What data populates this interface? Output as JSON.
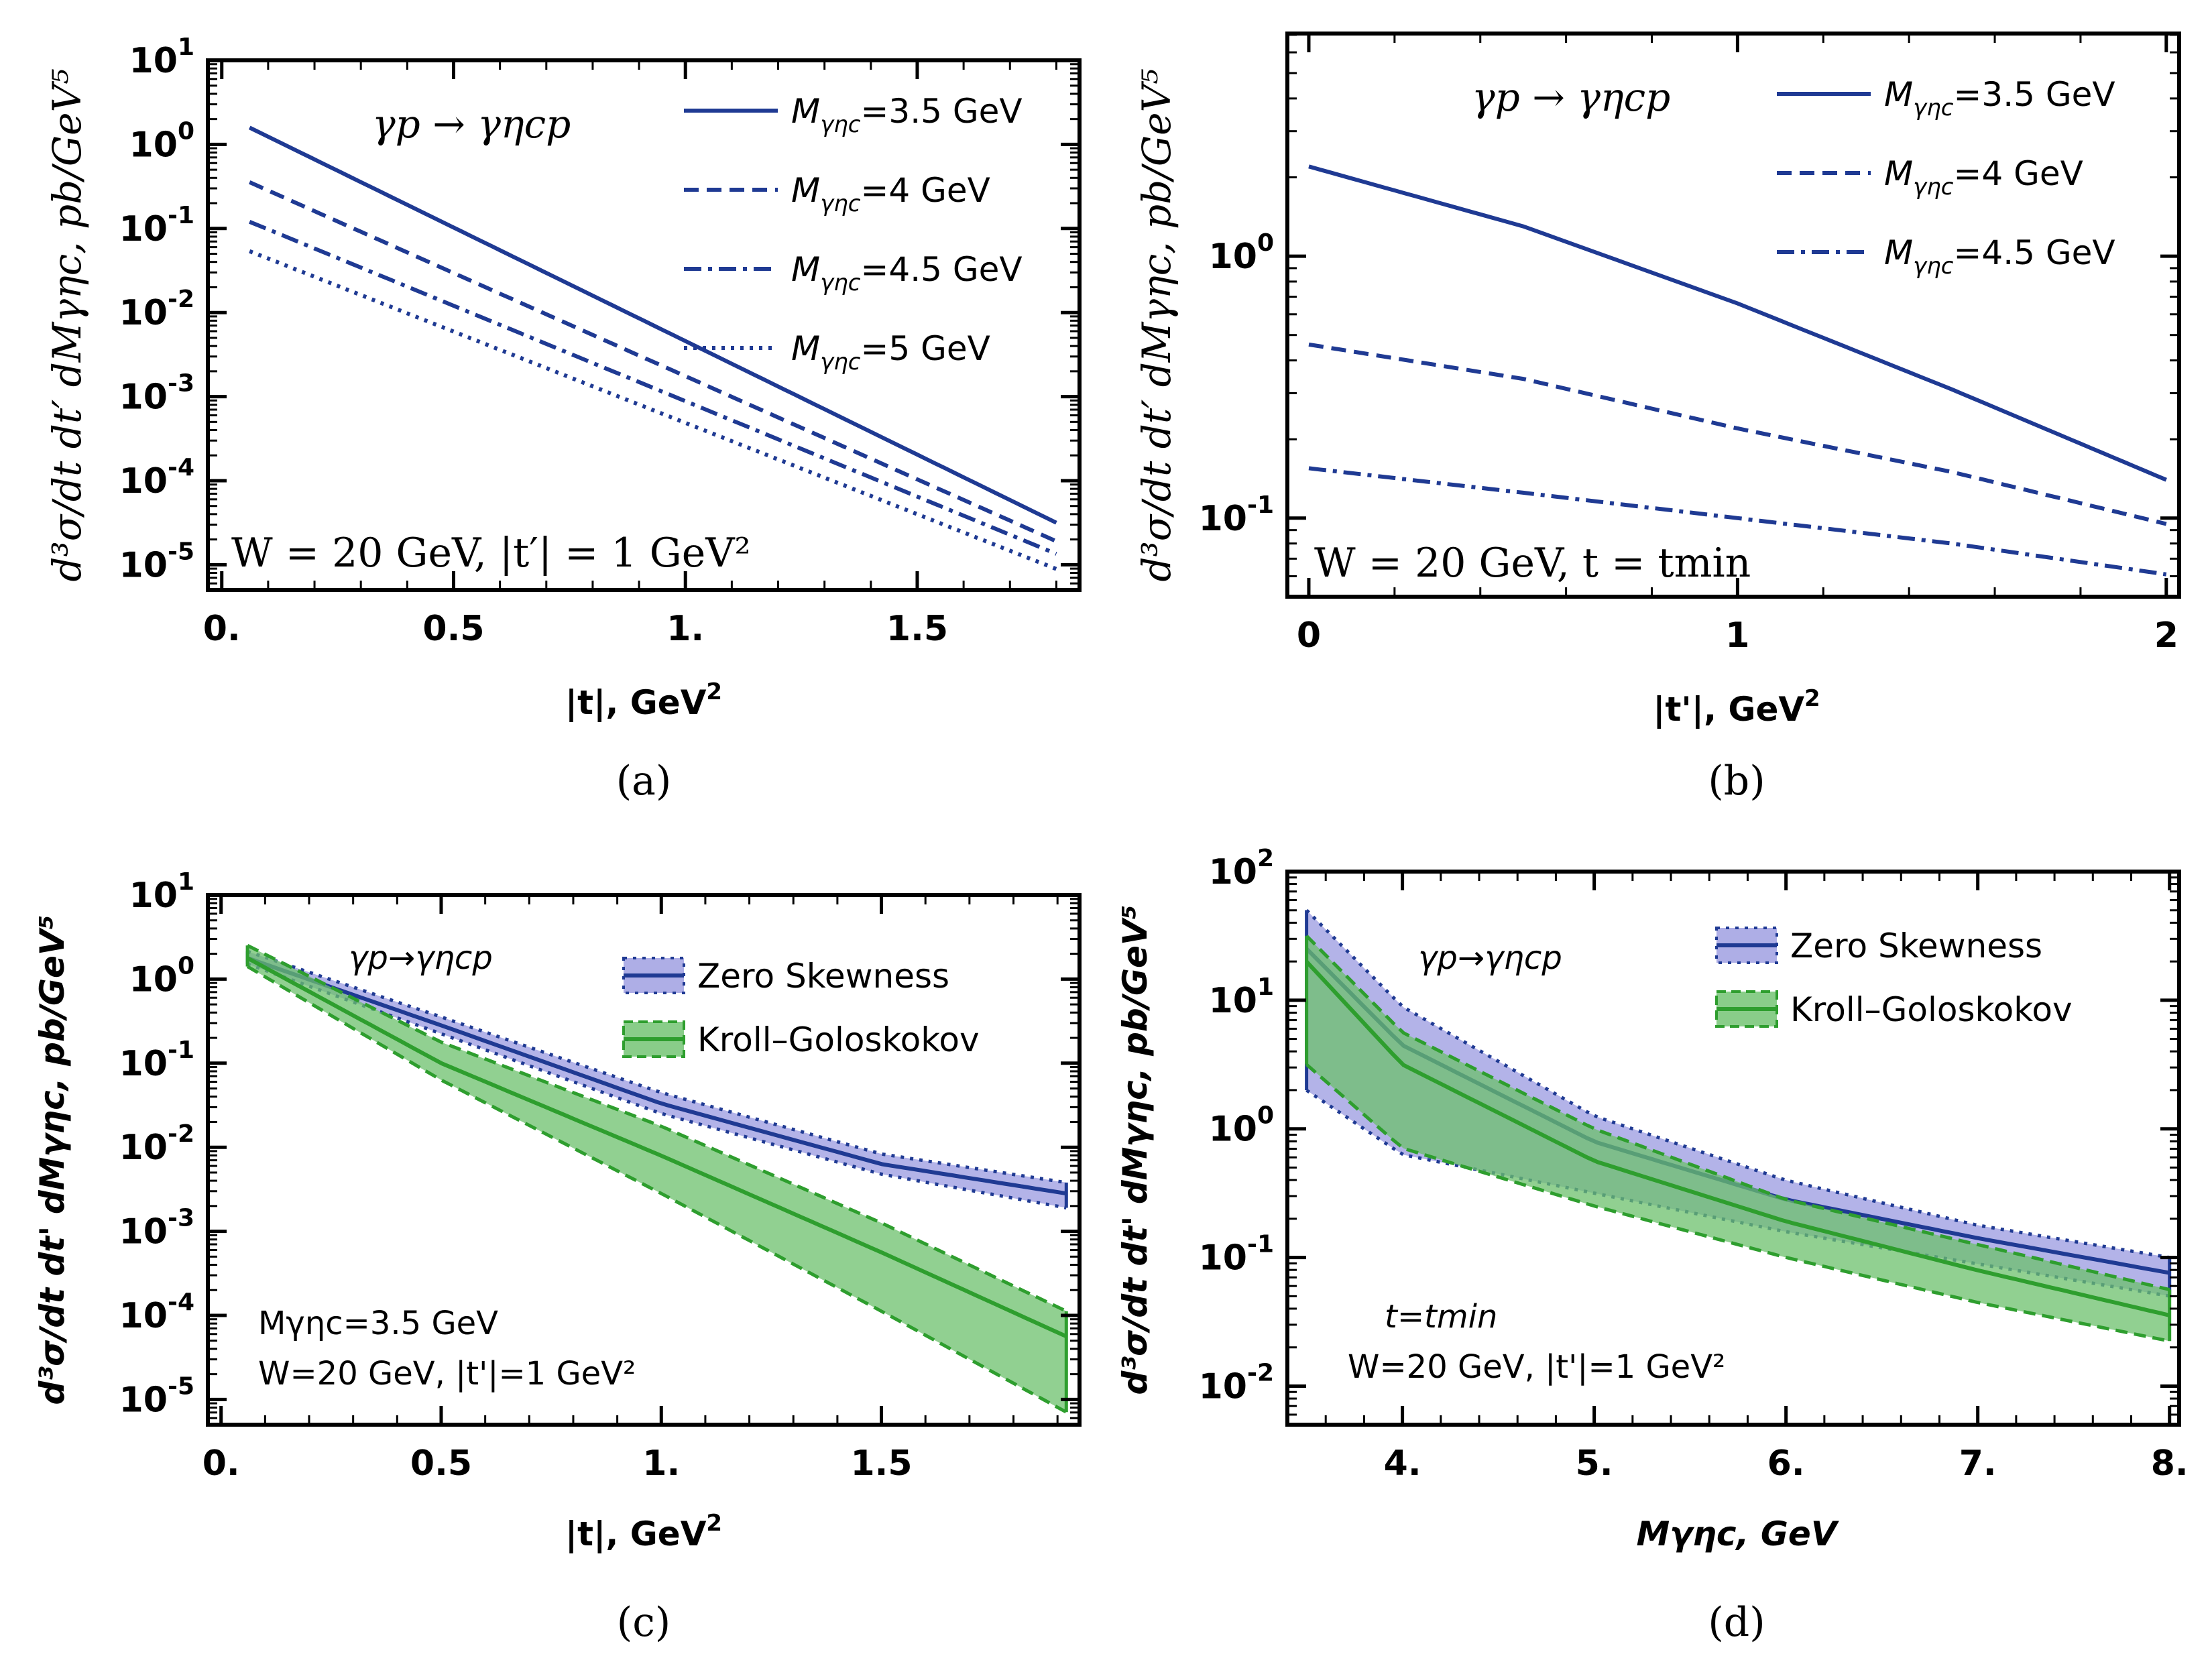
{
  "figure": {
    "colors": {
      "blue": "#1f3a93",
      "green": "#2e9e2e",
      "blue_fill": "#9a9ae0",
      "green_fill": "#6cc06c"
    }
  },
  "chart_data": [
    {
      "id": "a",
      "type": "line",
      "caption": "(a)",
      "log_y": true,
      "xlim": [
        -0.03,
        1.85
      ],
      "ylim_exp": [
        -5.3,
        1
      ],
      "xticks": [
        0,
        0.5,
        1,
        1.5
      ],
      "xtick_labels": [
        "0.",
        "0.5",
        "1.",
        "1.5"
      ],
      "yticks_exp": [
        -5,
        -4,
        -3,
        -2,
        -1,
        0,
        1
      ],
      "ytick_labels": [
        "10",
        "10",
        "10",
        "10",
        "10",
        "10",
        "10"
      ],
      "ytick_sups": [
        "-5",
        "-4",
        "-3",
        "-2",
        "-1",
        "0",
        "1"
      ],
      "xlabel": "|t|, GeV",
      "xlabel_sup": "2",
      "ylabel": "d³σ/dt dt′ dMγηc,  pb/GeV⁵",
      "process": "γp → γηcp",
      "annotation": "W = 20 GeV,  |t′| = 1 GeV²",
      "series": [
        {
          "name": "Mγηc=3.5 GeV",
          "legend_prefix": "M",
          "legend_sub": "γηc",
          "legend_suffix": "=3.5 GeV",
          "dash": "solid",
          "x": [
            0.06,
            1.8
          ],
          "y_exp": [
            0.2,
            -4.5
          ]
        },
        {
          "name": "Mγηc=4 GeV",
          "legend_prefix": "M",
          "legend_sub": "γηc",
          "legend_suffix": "=4 GeV",
          "dash": "dashed",
          "x": [
            0.06,
            1.8
          ],
          "y_exp": [
            -0.45,
            -4.72
          ]
        },
        {
          "name": "Mγηc=4.5 GeV",
          "legend_prefix": "M",
          "legend_sub": "γηc",
          "legend_suffix": "=4.5 GeV",
          "dash": "dashdot",
          "x": [
            0.06,
            1.8
          ],
          "y_exp": [
            -0.92,
            -4.87
          ]
        },
        {
          "name": "Mγηc=5 GeV",
          "legend_prefix": "M",
          "legend_sub": "γηc",
          "legend_suffix": "=5 GeV",
          "dash": "dotted",
          "x": [
            0.06,
            1.8
          ],
          "y_exp": [
            -1.27,
            -5.05
          ]
        }
      ]
    },
    {
      "id": "b",
      "type": "line",
      "caption": "(b)",
      "log_y": true,
      "xlim": [
        -0.05,
        2.03
      ],
      "ylim_exp": [
        -1.3,
        0.85
      ],
      "xticks": [
        0,
        1,
        2
      ],
      "xtick_labels": [
        "0",
        "1",
        "2"
      ],
      "yticks_exp": [
        -1,
        0
      ],
      "ytick_labels": [
        "10",
        "10"
      ],
      "ytick_sups": [
        "-1",
        "0"
      ],
      "xlabel": "|t'|, GeV",
      "xlabel_sup": "2",
      "ylabel": "d³σ/dt dt′ dMγηc,  pb/GeV⁵",
      "process": "γp → γηcp",
      "annotation": "W = 20 GeV,  t = tmin",
      "series": [
        {
          "name": "Mγηc=3.5 GeV",
          "legend_prefix": "M",
          "legend_sub": "γηc",
          "legend_suffix": "=3.5 GeV",
          "dash": "solid",
          "x": [
            0,
            0.5,
            1,
            1.5,
            2
          ],
          "y": [
            2.2,
            1.3,
            0.66,
            0.31,
            0.14
          ]
        },
        {
          "name": "Mγηc=4 GeV",
          "legend_prefix": "M",
          "legend_sub": "γηc",
          "legend_suffix": "=4 GeV",
          "dash": "dashed",
          "x": [
            0,
            0.5,
            1,
            1.5,
            2
          ],
          "y": [
            0.46,
            0.34,
            0.22,
            0.15,
            0.095
          ]
        },
        {
          "name": "Mγηc=4.5 GeV",
          "legend_prefix": "M",
          "legend_sub": "γηc",
          "legend_suffix": "=4.5 GeV",
          "dash": "dashdot",
          "x": [
            0,
            0.5,
            1,
            1.5,
            2
          ],
          "y": [
            0.155,
            0.125,
            0.1,
            0.08,
            0.061
          ]
        }
      ]
    },
    {
      "id": "c",
      "type": "area",
      "caption": "(c)",
      "log_y": true,
      "xlim": [
        -0.03,
        1.95
      ],
      "ylim_exp": [
        -5.3,
        1
      ],
      "xticks": [
        0,
        0.5,
        1,
        1.5
      ],
      "xtick_labels": [
        "0.",
        "0.5",
        "1.",
        "1.5"
      ],
      "yticks_exp": [
        -5,
        -4,
        -3,
        -2,
        -1,
        0,
        1
      ],
      "ytick_labels": [
        "10",
        "10",
        "10",
        "10",
        "10",
        "10",
        "10"
      ],
      "ytick_sups": [
        "-5",
        "-4",
        "-3",
        "-2",
        "-1",
        "0",
        "1"
      ],
      "xlabel": "|t|, GeV",
      "xlabel_sup": "2",
      "ylabel": "d³σ/dt dt' dMγηc, pb/GeV⁵",
      "process": "γp→γηcp",
      "annotation_1": "Mγηc=3.5 GeV",
      "annotation_2": "W=20 GeV, |t'|=1 GeV²",
      "series": [
        {
          "name": "Zero Skewness",
          "x": [
            0.06,
            0.5,
            1.0,
            1.5,
            1.92
          ],
          "y_exp": [
            0.25,
            -0.55,
            -1.48,
            -2.2,
            -2.55
          ],
          "band_lo_exp": [
            0.18,
            -0.65,
            -1.6,
            -2.32,
            -2.72
          ],
          "band_hi_exp": [
            0.33,
            -0.45,
            -1.35,
            -2.08,
            -2.42
          ]
        },
        {
          "name": "Kroll–Goloskokov",
          "x": [
            0.06,
            0.5,
            1.0,
            1.5,
            1.92
          ],
          "y_exp": [
            0.25,
            -1.0,
            -2.1,
            -3.25,
            -4.25
          ],
          "band_lo_exp": [
            0.15,
            -1.2,
            -2.55,
            -3.95,
            -5.15
          ],
          "band_hi_exp": [
            0.4,
            -0.75,
            -1.75,
            -2.9,
            -3.95
          ]
        }
      ]
    },
    {
      "id": "d",
      "type": "area",
      "caption": "(d)",
      "log_y": true,
      "xlim": [
        3.4,
        8.05
      ],
      "ylim_exp": [
        -2.3,
        2
      ],
      "xticks": [
        4,
        5,
        6,
        7,
        8
      ],
      "xtick_labels": [
        "4.",
        "5.",
        "6.",
        "7.",
        "8."
      ],
      "yticks_exp": [
        -2,
        -1,
        0,
        1,
        2
      ],
      "ytick_labels": [
        "10",
        "10",
        "10",
        "10",
        "10"
      ],
      "ytick_sups": [
        "-2",
        "-1",
        "0",
        "1",
        "2"
      ],
      "xlabel": "Mγηc, GeV",
      "ylabel": "d³σ/dt dt' dMγηc, pb/GeV⁵",
      "process": "γp→γηcp",
      "annotation_1": "t=tmin",
      "annotation_2": "W=20 GeV, |t'|=1 GeV²",
      "series": [
        {
          "name": "Zero Skewness",
          "x": [
            3.5,
            4,
            5,
            6,
            7,
            8
          ],
          "y_exp": [
            1.4,
            0.65,
            -0.1,
            -0.55,
            -0.85,
            -1.12
          ],
          "band_lo_exp": [
            0.3,
            -0.2,
            -0.5,
            -0.8,
            -1.05,
            -1.3
          ],
          "band_hi_exp": [
            1.7,
            0.95,
            0.1,
            -0.4,
            -0.75,
            -1.0
          ]
        },
        {
          "name": "Kroll–Goloskokov",
          "x": [
            3.5,
            4,
            5,
            6,
            7,
            8
          ],
          "y_exp": [
            1.3,
            0.5,
            -0.25,
            -0.72,
            -1.1,
            -1.45
          ],
          "band_lo_exp": [
            0.5,
            -0.15,
            -0.6,
            -1.0,
            -1.35,
            -1.65
          ],
          "band_hi_exp": [
            1.5,
            0.75,
            0.0,
            -0.55,
            -0.9,
            -1.25
          ]
        }
      ]
    }
  ]
}
